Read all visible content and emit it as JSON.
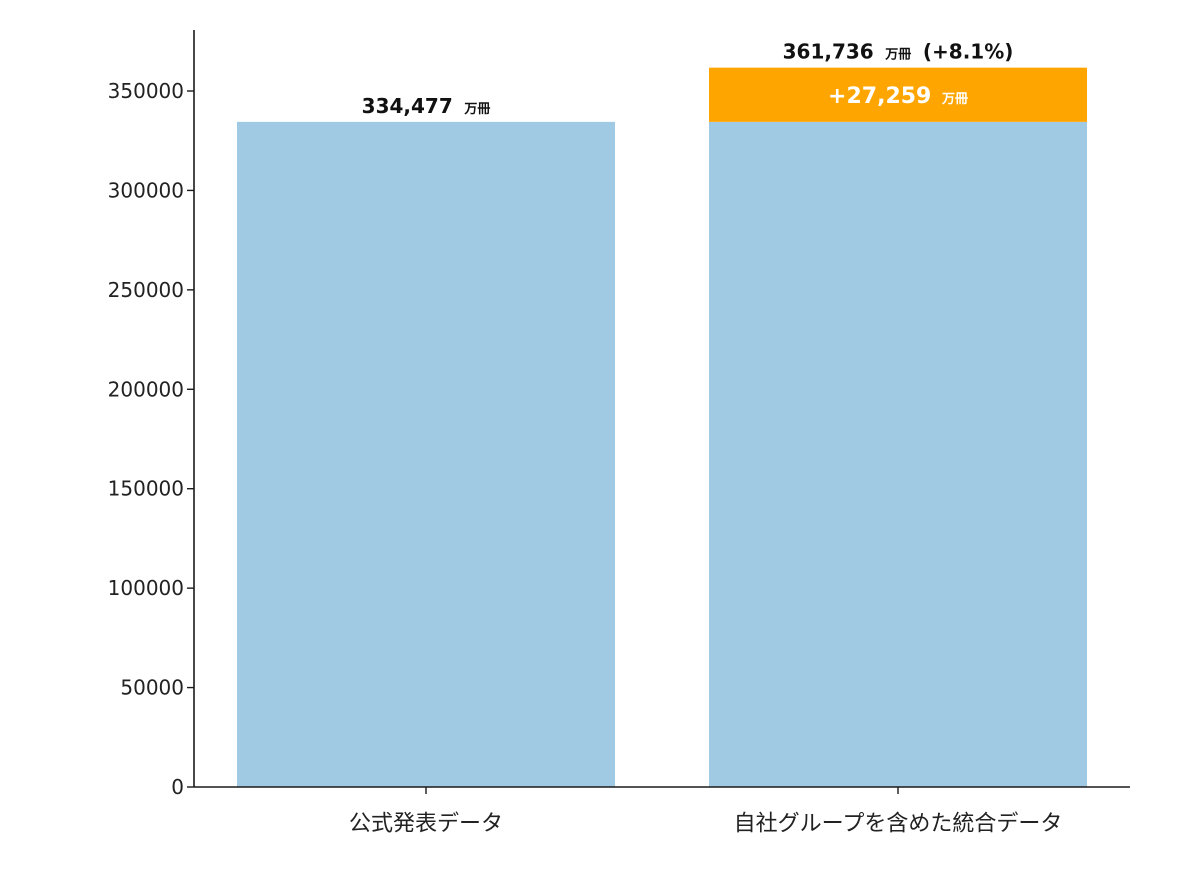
{
  "chart_data": {
    "type": "bar",
    "title": "",
    "xlabel": "",
    "ylabel": "",
    "ylim": [
      0,
      371000
    ],
    "yticks": [
      0,
      50000,
      100000,
      150000,
      200000,
      250000,
      300000,
      350000
    ],
    "grid": false,
    "categories": [
      "公式発表データ",
      "自社グループを含めた統合データ"
    ],
    "series": [
      {
        "values": [
          334477,
          334477
        ],
        "color": "#a0c9e3"
      },
      {
        "values": [
          0,
          27259
        ],
        "color": "#ffa500"
      }
    ],
    "totals": [
      334477,
      361736
    ],
    "labels": {
      "bar1_total_number": "334,477",
      "bar1_total_unit": "万冊",
      "bar2_total_number": "361,736",
      "bar2_total_unit": "万冊",
      "bar2_total_change": "(+8.1%)",
      "bar2_increment_number": "+27,259",
      "bar2_increment_unit": "万冊"
    }
  }
}
